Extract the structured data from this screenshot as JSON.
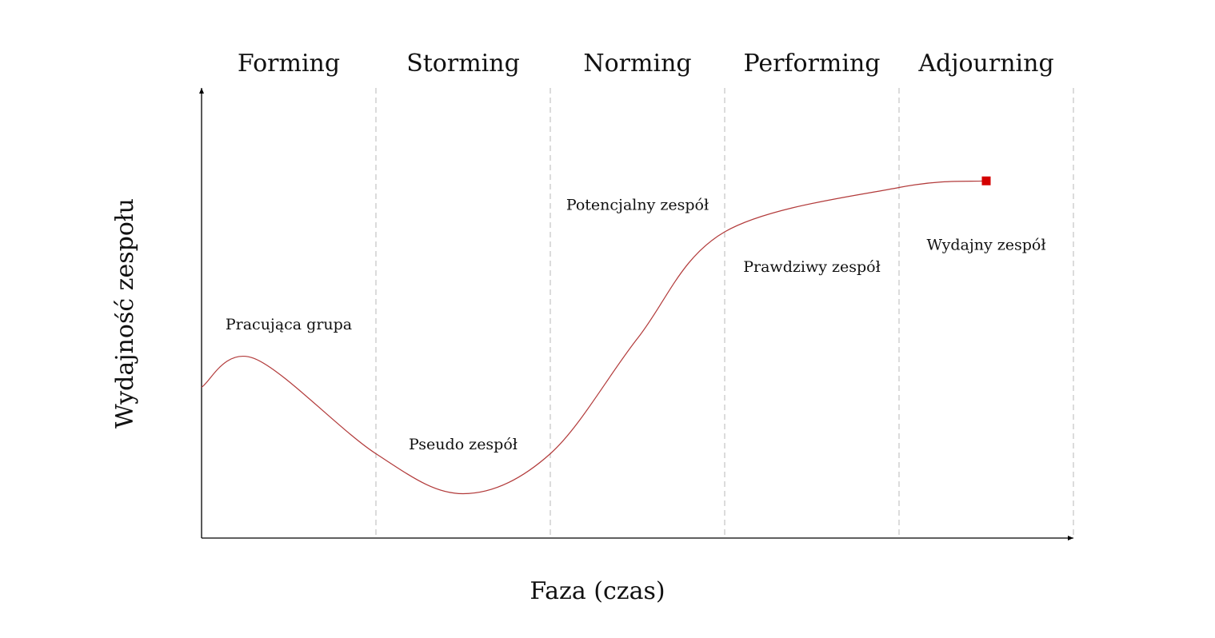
{
  "chart_data": {
    "type": "line",
    "xlabel": "Faza (czas)",
    "ylabel": "Wydajność zespołu",
    "phases": [
      "Forming",
      "Storming",
      "Norming",
      "Performing",
      "Adjourning"
    ],
    "xlim": [
      0,
      5
    ],
    "ylim": [
      0,
      10
    ],
    "grid": "dashed vertical dividers between phases",
    "series": [
      {
        "color": "#b23a3a",
        "marker_color": "#d40000",
        "points": [
          {
            "x": 0.0,
            "y": 3.4
          },
          {
            "x": 0.3,
            "y": 4.05
          },
          {
            "x": 1.0,
            "y": 1.9
          },
          {
            "x": 1.5,
            "y": 1.0
          },
          {
            "x": 2.0,
            "y": 1.9
          },
          {
            "x": 2.5,
            "y": 4.5
          },
          {
            "x": 3.0,
            "y": 6.9
          },
          {
            "x": 4.0,
            "y": 7.9
          },
          {
            "x": 4.5,
            "y": 8.05
          }
        ],
        "end_marker": {
          "x": 4.5,
          "y": 8.05,
          "shape": "square"
        }
      }
    ],
    "stage_labels": [
      {
        "text": "Pracująca grupa",
        "x": 0.5,
        "y": 4.7
      },
      {
        "text": "Pseudo zespół",
        "x": 1.5,
        "y": 2.0
      },
      {
        "text": "Potencjalny zespół",
        "x": 2.5,
        "y": 7.4
      },
      {
        "text": "Prawdziwy zespół",
        "x": 3.5,
        "y": 6.0
      },
      {
        "text": "Wydajny zespół",
        "x": 4.5,
        "y": 6.5
      }
    ]
  }
}
